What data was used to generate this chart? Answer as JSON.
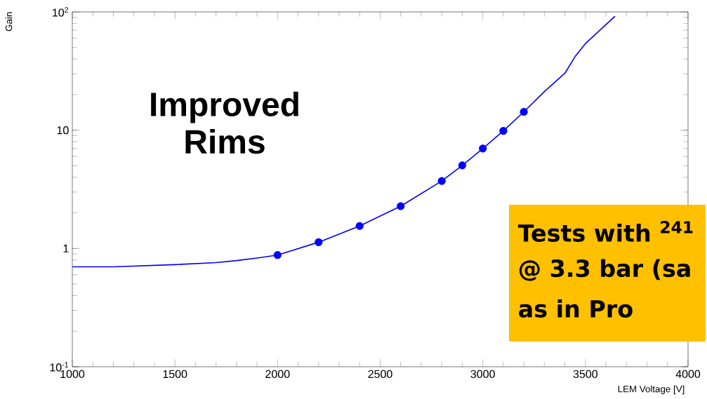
{
  "chart_data": {
    "type": "scatter",
    "xlabel": "LEM Voltage [V]",
    "ylabel": "Gain",
    "log": "y",
    "xlim": [
      1000,
      4000
    ],
    "xticks": [
      1000,
      1500,
      2000,
      2500,
      3000,
      3500,
      4000
    ],
    "ylim": [
      0.1,
      100
    ],
    "yticks": [
      {
        "value": 0.1,
        "label": "10$^{-1}$"
      },
      1,
      10,
      {
        "value": 100,
        "label": "10$^{2}$"
      }
    ],
    "grid": false,
    "series": [
      {
        "type": "line",
        "color": "#0000ff",
        "marker": "none",
        "x": [
          1000,
          1200,
          1500,
          1700,
          1800,
          1900,
          2000,
          2200,
          2400,
          2600,
          2800,
          2900,
          3000,
          3100,
          3200,
          3300,
          3400,
          3450,
          3500,
          3550,
          3644
        ],
        "values": [
          0.7,
          0.7,
          0.73,
          0.76,
          0.79,
          0.83,
          0.88,
          1.13,
          1.55,
          2.28,
          3.72,
          5.04,
          7.0,
          9.86,
          14.3,
          21.2,
          30.3,
          42,
          54,
          65,
          92
        ]
      },
      {
        "type": "scatter",
        "color": "#0000ff",
        "marker": "circle",
        "x": [
          2000,
          2200,
          2400,
          2600,
          2800,
          2900,
          3000,
          3100,
          3200
        ],
        "values": [
          0.88,
          1.13,
          1.55,
          2.28,
          3.72,
          5.04,
          7.0,
          9.86,
          14.3
        ]
      }
    ],
    "annotations": [
      "Improved",
      "Rims",
      "Tests with $^{241}$",
      "@ 3.3 bar (sa",
      "as in Pro"
    ]
  }
}
